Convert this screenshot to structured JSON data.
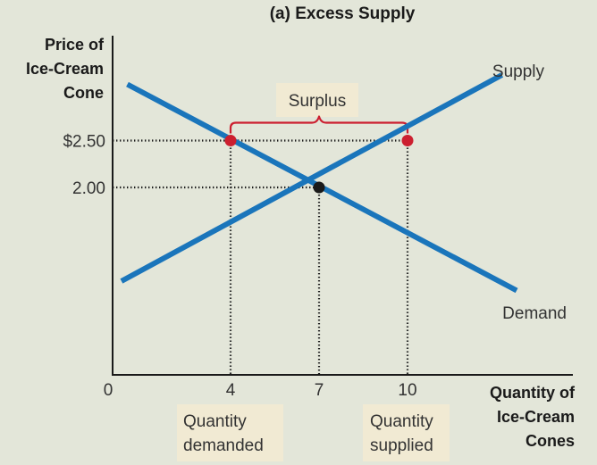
{
  "chart_data": {
    "type": "line",
    "title": "(a) Excess Supply",
    "ylabel_lines": [
      "Price of",
      "Ice-Cream",
      "Cone"
    ],
    "xlabel_lines": [
      "Quantity of",
      "Ice-Cream",
      "Cones"
    ],
    "x_ticks": [
      {
        "value": 0,
        "label": "0"
      },
      {
        "value": 4,
        "label": "4"
      },
      {
        "value": 7,
        "label": "7"
      },
      {
        "value": 10,
        "label": "10"
      }
    ],
    "y_ticks": [
      {
        "value": 2.5,
        "label": "$2.50"
      },
      {
        "value": 2.0,
        "label": "2.00"
      }
    ],
    "xlim": [
      0,
      15.5
    ],
    "ylim": [
      0,
      3.8
    ],
    "series": [
      {
        "name": "Supply",
        "color": "#1a75bb",
        "points": [
          [
            0.3,
            1.0
          ],
          [
            13.2,
            3.2
          ]
        ]
      },
      {
        "name": "Demand",
        "color": "#1a75bb",
        "points": [
          [
            0.5,
            3.1
          ],
          [
            13.7,
            0.9
          ]
        ]
      }
    ],
    "points": [
      {
        "x": 4,
        "y": 2.5,
        "color": "#cc1f2f"
      },
      {
        "x": 10,
        "y": 2.5,
        "color": "#cc1f2f"
      },
      {
        "x": 7,
        "y": 2.0,
        "color": "#1a1a1a"
      }
    ],
    "annotations": {
      "surplus": "Surplus",
      "quantity_demanded": [
        "Quantity",
        "demanded"
      ],
      "quantity_supplied": [
        "Quantity",
        "supplied"
      ]
    },
    "colors": {
      "background": "#e3e6d9",
      "curve": "#1a75bb",
      "highlight": "#cc1f2f",
      "label_box": "#f1ead3"
    }
  }
}
